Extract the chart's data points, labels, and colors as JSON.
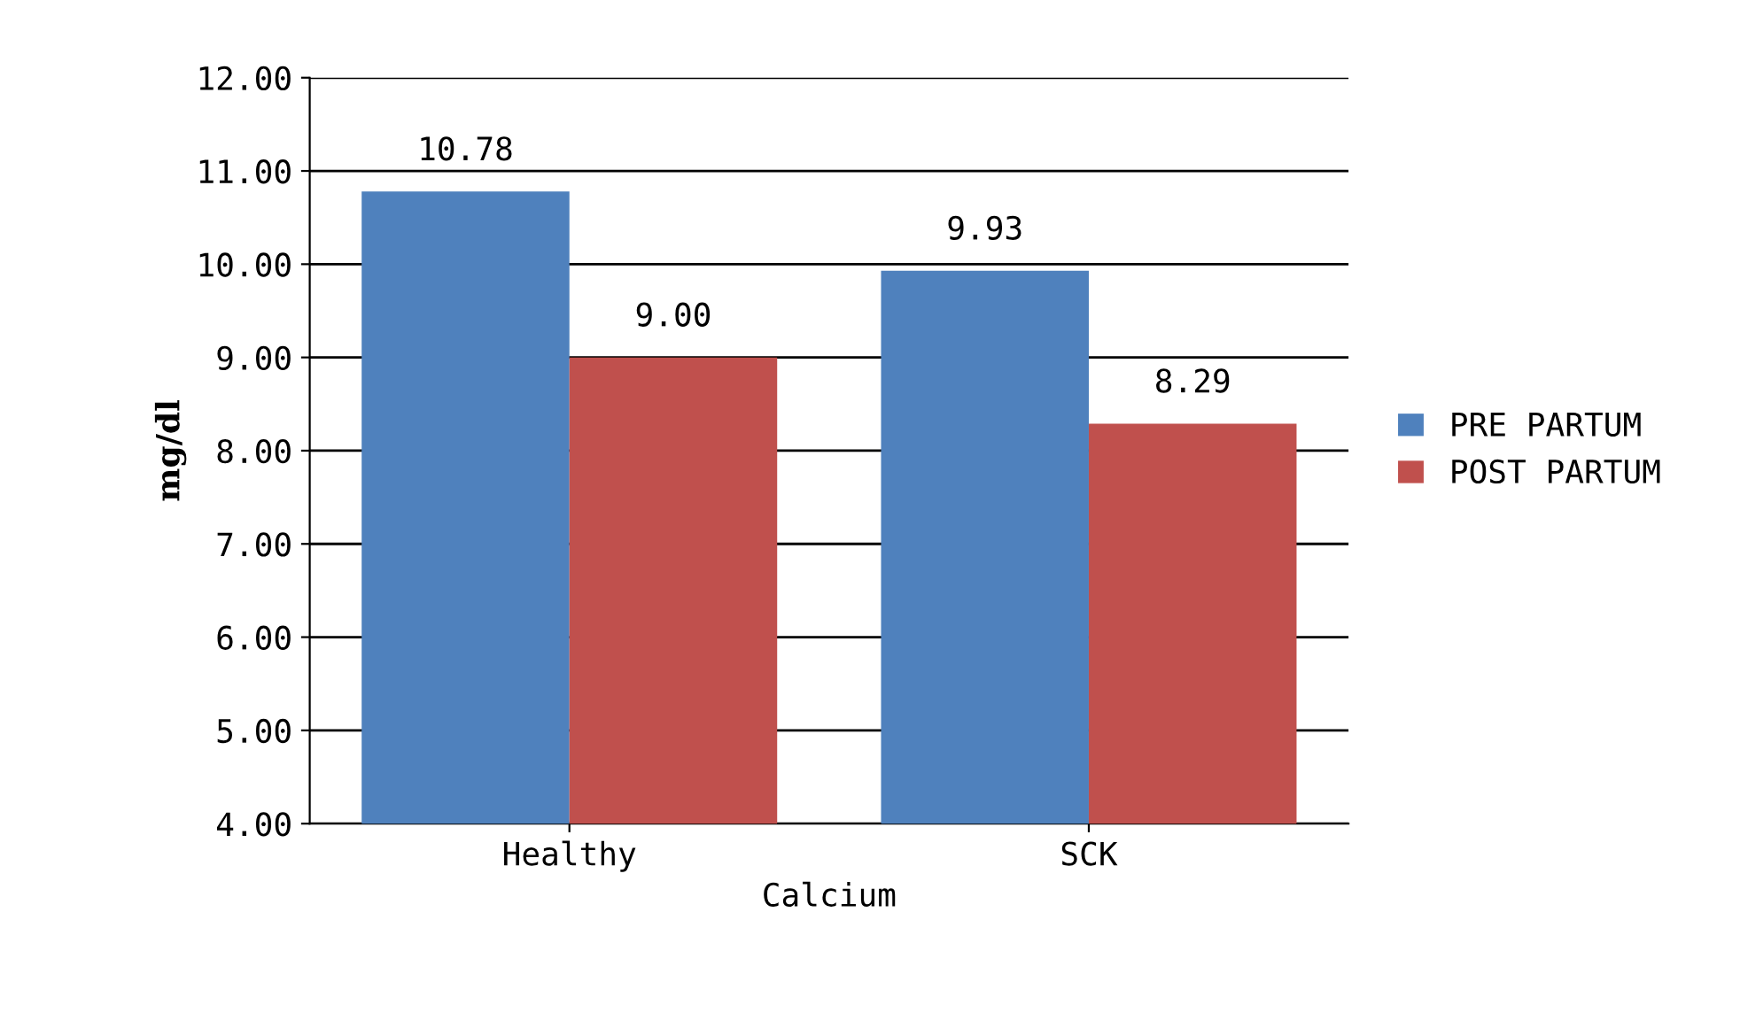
{
  "chart_data": {
    "type": "bar",
    "xlabel": "Calcium",
    "ylabel": "mg/dl",
    "categories": [
      "Healthy",
      "SCK"
    ],
    "series": [
      {
        "name": "PRE PARTUM",
        "color": "#4f81bd",
        "values": [
          10.78,
          9.93
        ],
        "value_labels": [
          "10.78",
          "9.93"
        ]
      },
      {
        "name": "POST PARTUM",
        "color": "#c0504d",
        "values": [
          9.0,
          8.29
        ],
        "value_labels": [
          "9.00",
          "8.29"
        ]
      }
    ],
    "ylim": [
      4,
      12
    ],
    "yticks": [
      {
        "value": 4,
        "label": "4.00"
      },
      {
        "value": 5,
        "label": "5.00"
      },
      {
        "value": 6,
        "label": "6.00"
      },
      {
        "value": 7,
        "label": "7.00"
      },
      {
        "value": 8,
        "label": "8.00"
      },
      {
        "value": 9,
        "label": "9.00"
      },
      {
        "value": 10,
        "label": "10.00"
      },
      {
        "value": 11,
        "label": "11.00"
      },
      {
        "value": 12,
        "label": "12.00"
      }
    ],
    "grid": "y",
    "legend": "right"
  }
}
